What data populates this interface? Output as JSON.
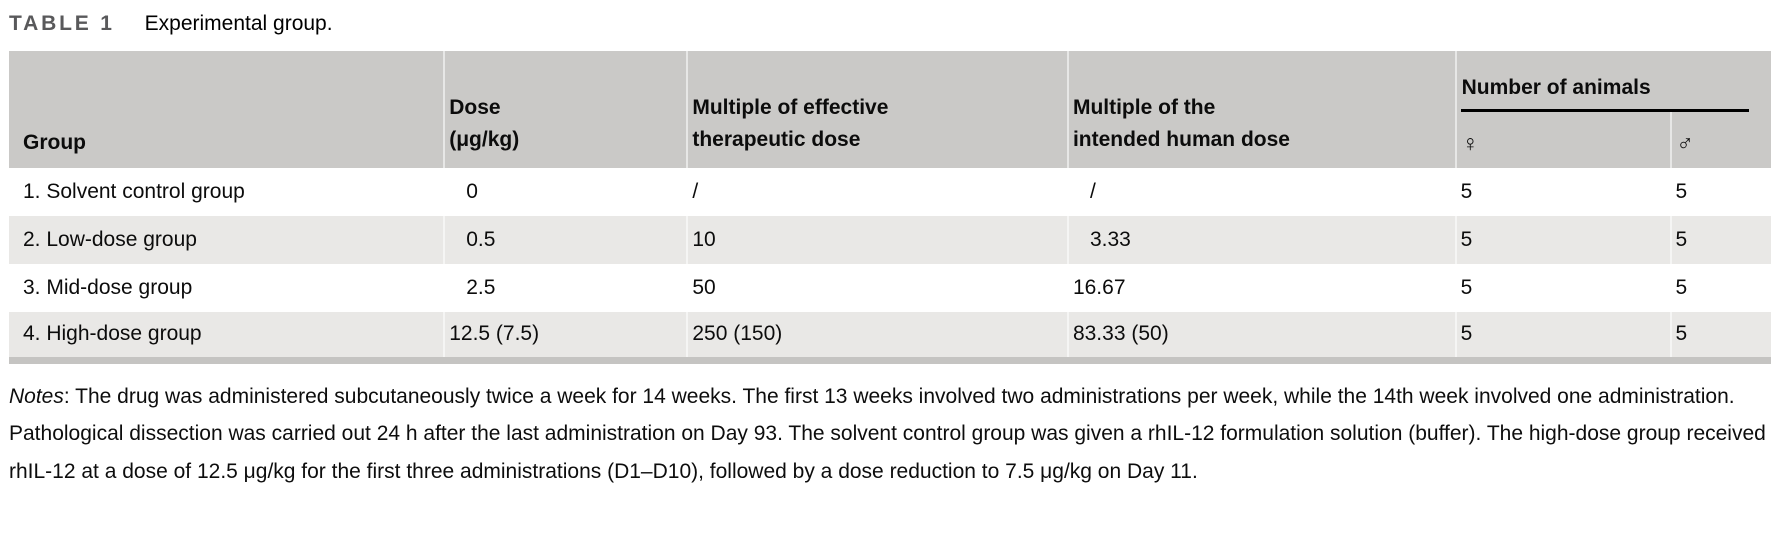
{
  "title": {
    "label": "TABLE 1",
    "caption": "Experimental group."
  },
  "table": {
    "columns": {
      "group": "Group",
      "dose_line1": "Dose",
      "dose_line2": "(μg/kg)",
      "multiple_effective_line1": "Multiple of effective",
      "multiple_effective_line2": "therapeutic dose",
      "multiple_human_line1": "Multiple of the",
      "multiple_human_line2": "intended human dose",
      "animals_group": "Number of animals",
      "female_symbol": "♀",
      "male_symbol": "♂"
    },
    "rows": [
      {
        "group": "1. Solvent control group",
        "dose": "0",
        "multiple_effective": "/",
        "multiple_human": "/",
        "female": "5",
        "male": "5"
      },
      {
        "group": "2. Low-dose group",
        "dose": "0.5",
        "multiple_effective": "10",
        "multiple_human": "3.33",
        "female": "5",
        "male": "5"
      },
      {
        "group": "3. Mid-dose group",
        "dose": "2.5",
        "multiple_effective": "50",
        "multiple_human": "16.67",
        "female": "5",
        "male": "5"
      },
      {
        "group": "4. High-dose group",
        "dose": "12.5 (7.5)",
        "multiple_effective": "250 (150)",
        "multiple_human": "83.33 (50)",
        "female": "5",
        "male": "5"
      }
    ]
  },
  "notes": {
    "label": "Notes",
    "text": ": The drug was administered subcutaneously twice a week for 14 weeks. The first 13 weeks involved two administrations per week, while the 14th week involved one administration. Pathological dissection was carried out 24 h after the last administration on Day 93. The solvent control group was given a rhIL-12 formulation solution (buffer). The high-dose group received rhIL-12 at a dose of 12.5 μg/kg for the first three administrations (D1–D10), followed by a dose reduction to 7.5 μg/kg on Day 11."
  },
  "colors": {
    "header_background": "#cac9c7",
    "stripe_background": "#e9e8e6",
    "table_bottom_border": "#c5c4c2",
    "title_label": "#59595b",
    "text": "#0c0c0c",
    "rule_under_animals": "#000000"
  }
}
